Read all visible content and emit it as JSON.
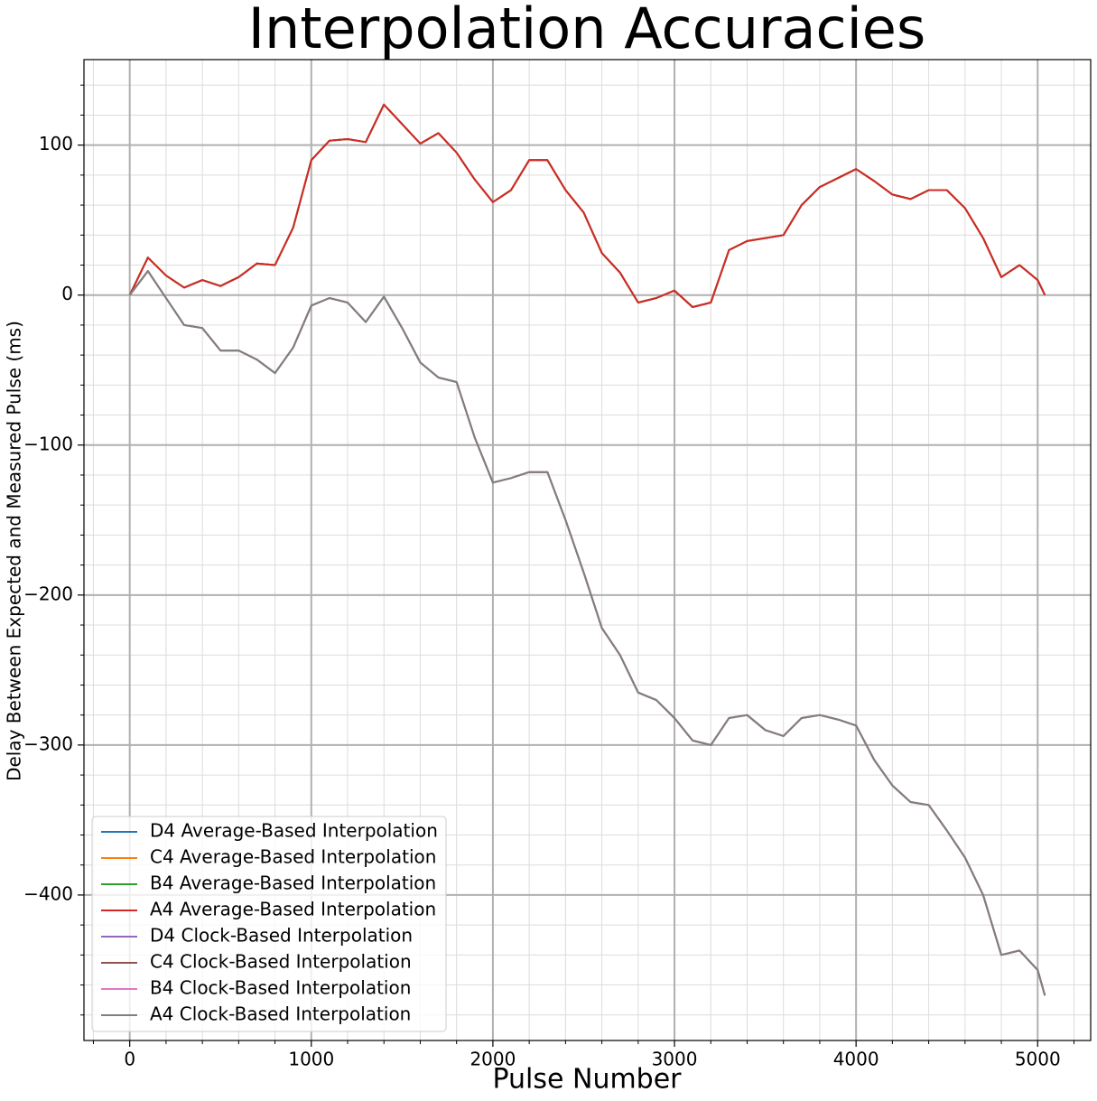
{
  "chart_data": {
    "type": "line",
    "title": "Interpolation Accuracies",
    "xlabel": "Pulse Number",
    "ylabel": "Delay Between Expected and Measured Pulse (ms)",
    "x": [
      0,
      100,
      200,
      300,
      400,
      500,
      600,
      700,
      800,
      900,
      1000,
      1100,
      1200,
      1300,
      1400,
      1500,
      1600,
      1700,
      1800,
      1900,
      2000,
      2100,
      2200,
      2300,
      2400,
      2500,
      2600,
      2700,
      2800,
      2900,
      3000,
      3100,
      3200,
      3300,
      3400,
      3500,
      3600,
      3700,
      3800,
      3900,
      4000,
      4100,
      4200,
      4300,
      4400,
      4500,
      4600,
      4700,
      4800,
      4900,
      5000,
      5040
    ],
    "series": [
      {
        "name": "D4 Average-Based Interpolation",
        "color": "#1f77b4",
        "values": [
          0,
          25,
          13,
          5,
          10,
          6,
          12,
          21,
          20,
          45,
          90,
          103,
          104,
          102,
          127,
          114,
          101,
          108,
          95,
          77,
          62,
          70,
          90,
          90,
          70,
          55,
          28,
          15,
          -5,
          -2,
          3,
          -8,
          -5,
          30,
          36,
          38,
          40,
          60,
          72,
          78,
          84,
          76,
          67,
          64,
          70,
          70,
          58,
          38,
          12,
          20,
          10,
          0
        ]
      },
      {
        "name": "C4 Average-Based Interpolation",
        "color": "#ff7f0e",
        "values": [
          0,
          25,
          13,
          5,
          10,
          6,
          12,
          21,
          20,
          45,
          90,
          103,
          104,
          102,
          127,
          114,
          101,
          108,
          95,
          77,
          62,
          70,
          90,
          90,
          70,
          55,
          28,
          15,
          -5,
          -2,
          3,
          -8,
          -5,
          30,
          36,
          38,
          40,
          60,
          72,
          78,
          84,
          76,
          67,
          64,
          70,
          70,
          58,
          38,
          12,
          20,
          10,
          0
        ]
      },
      {
        "name": "B4 Average-Based Interpolation",
        "color": "#2ca02c",
        "values": [
          0,
          25,
          13,
          5,
          10,
          6,
          12,
          21,
          20,
          45,
          90,
          103,
          104,
          102,
          127,
          114,
          101,
          108,
          95,
          77,
          62,
          70,
          90,
          90,
          70,
          55,
          28,
          15,
          -5,
          -2,
          3,
          -8,
          -5,
          30,
          36,
          38,
          40,
          60,
          72,
          78,
          84,
          76,
          67,
          64,
          70,
          70,
          58,
          38,
          12,
          20,
          10,
          0
        ]
      },
      {
        "name": "A4 Average-Based Interpolation",
        "color": "#d62728",
        "values": [
          0,
          25,
          13,
          5,
          10,
          6,
          12,
          21,
          20,
          45,
          90,
          103,
          104,
          102,
          127,
          114,
          101,
          108,
          95,
          77,
          62,
          70,
          90,
          90,
          70,
          55,
          28,
          15,
          -5,
          -2,
          3,
          -8,
          -5,
          30,
          36,
          38,
          40,
          60,
          72,
          78,
          84,
          76,
          67,
          64,
          70,
          70,
          58,
          38,
          12,
          20,
          10,
          0
        ]
      },
      {
        "name": "D4 Clock-Based Interpolation",
        "color": "#9467bd",
        "values": [
          0,
          16,
          -2,
          -20,
          -22,
          -37,
          -37,
          -43,
          -52,
          -35,
          -7,
          -2,
          -5,
          -18,
          -1,
          -22,
          -45,
          -55,
          -58,
          -95,
          -125,
          -122,
          -118,
          -118,
          -150,
          -185,
          -222,
          -240,
          -265,
          -270,
          -282,
          -297,
          -300,
          -282,
          -280,
          -290,
          -294,
          -282,
          -280,
          -283,
          -287,
          -310,
          -327,
          -338,
          -340,
          -357,
          -375,
          -400,
          -440,
          -437,
          -450,
          -467
        ]
      },
      {
        "name": "C4 Clock-Based Interpolation",
        "color": "#8c564b",
        "values": [
          0,
          16,
          -2,
          -20,
          -22,
          -37,
          -37,
          -43,
          -52,
          -35,
          -7,
          -2,
          -5,
          -18,
          -1,
          -22,
          -45,
          -55,
          -58,
          -95,
          -125,
          -122,
          -118,
          -118,
          -150,
          -185,
          -222,
          -240,
          -265,
          -270,
          -282,
          -297,
          -300,
          -282,
          -280,
          -290,
          -294,
          -282,
          -280,
          -283,
          -287,
          -310,
          -327,
          -338,
          -340,
          -357,
          -375,
          -400,
          -440,
          -437,
          -450,
          -467
        ]
      },
      {
        "name": "B4 Clock-Based Interpolation",
        "color": "#e377c2",
        "values": [
          0,
          16,
          -2,
          -20,
          -22,
          -37,
          -37,
          -43,
          -52,
          -35,
          -7,
          -2,
          -5,
          -18,
          -1,
          -22,
          -45,
          -55,
          -58,
          -95,
          -125,
          -122,
          -118,
          -118,
          -150,
          -185,
          -222,
          -240,
          -265,
          -270,
          -282,
          -297,
          -300,
          -282,
          -280,
          -290,
          -294,
          -282,
          -280,
          -283,
          -287,
          -310,
          -327,
          -338,
          -340,
          -357,
          -375,
          -400,
          -440,
          -437,
          -450,
          -467
        ]
      },
      {
        "name": "A4 Clock-Based Interpolation",
        "color": "#7f7f7f",
        "values": [
          0,
          16,
          -2,
          -20,
          -22,
          -37,
          -37,
          -43,
          -52,
          -35,
          -7,
          -2,
          -5,
          -18,
          -1,
          -22,
          -45,
          -55,
          -58,
          -95,
          -125,
          -122,
          -118,
          -118,
          -150,
          -185,
          -222,
          -240,
          -265,
          -270,
          -282,
          -297,
          -300,
          -282,
          -280,
          -290,
          -294,
          -282,
          -280,
          -283,
          -287,
          -310,
          -327,
          -338,
          -340,
          -357,
          -375,
          -400,
          -440,
          -437,
          -450,
          -467
        ]
      }
    ],
    "xlim": [
      -252,
      5292
    ],
    "ylim": [
      -497,
      157
    ],
    "xticks": [
      0,
      1000,
      2000,
      3000,
      4000,
      5000
    ],
    "yticks": [
      {
        "value": -400,
        "label": "−400"
      },
      {
        "value": -300,
        "label": "−300"
      },
      {
        "value": -200,
        "label": "−200"
      },
      {
        "value": -100,
        "label": "−100"
      },
      0,
      100
    ],
    "xminorticks": [
      -200,
      200,
      400,
      600,
      800,
      1200,
      1400,
      1600,
      1800,
      2200,
      2400,
      2600,
      2800,
      3200,
      3400,
      3600,
      3800,
      4200,
      4400,
      4600,
      4800,
      5200
    ],
    "yminorticks": [
      -480,
      -460,
      -440,
      -420,
      -380,
      -360,
      -340,
      -320,
      -280,
      -260,
      -240,
      -220,
      -180,
      -160,
      -140,
      -120,
      -80,
      -60,
      -40,
      -20,
      20,
      40,
      60,
      80,
      120,
      140
    ],
    "grid": true,
    "minor_grid": true,
    "legend": "lower left"
  }
}
